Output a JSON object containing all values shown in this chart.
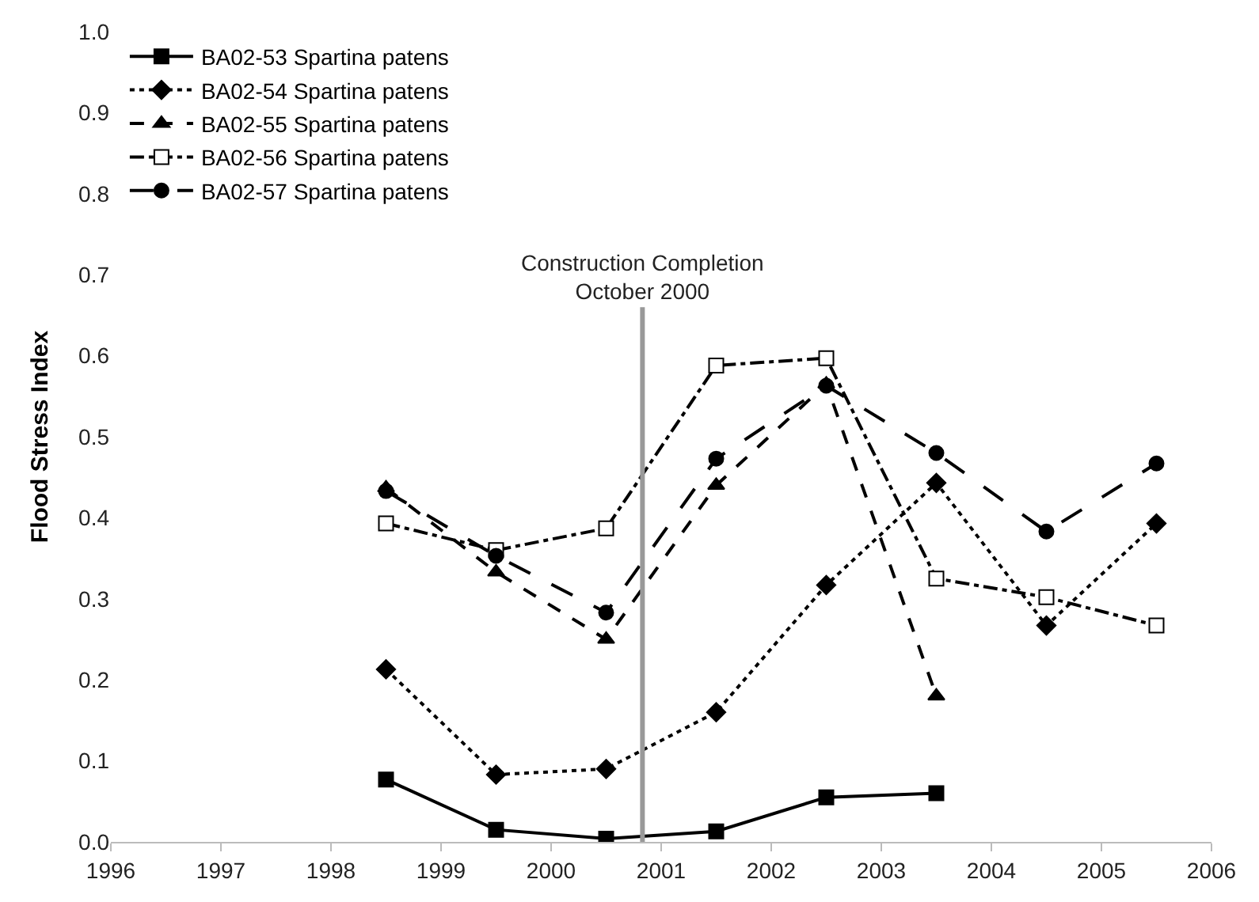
{
  "chart_data": {
    "type": "line",
    "ylabel": "Flood Stress Index",
    "xlim": [
      1996,
      2006
    ],
    "xticks": [
      1996,
      1997,
      1998,
      1999,
      2000,
      2001,
      2002,
      2003,
      2004,
      2005,
      2006
    ],
    "ylim": [
      0,
      1
    ],
    "yticks": [
      {
        "value": 0,
        "label": "0.0"
      },
      {
        "value": 0.1,
        "label": "0.1"
      },
      {
        "value": 0.2,
        "label": "0.2"
      },
      {
        "value": 0.3,
        "label": "0.3"
      },
      {
        "value": 0.4,
        "label": "0.4"
      },
      {
        "value": 0.5,
        "label": "0.5"
      },
      {
        "value": 0.6,
        "label": "0.6"
      },
      {
        "value": 0.7,
        "label": "0.7"
      },
      {
        "value": 0.8,
        "label": "0.8"
      },
      {
        "value": 0.9,
        "label": "0.9"
      },
      {
        "value": 1,
        "label": "1.0"
      }
    ],
    "legend": "top left",
    "ref_lines": [
      {
        "axis": "x",
        "value": 2000.83,
        "label": "Construction Completion\nOctober 2000",
        "color": "#999999",
        "line_style": "solid"
      }
    ],
    "series": [
      {
        "name": "BA02-53 Spartina patens",
        "color": "#000000",
        "marker": "square",
        "line_style": "solid",
        "x": [
          1998.5,
          1999.5,
          2000.5,
          2001.5,
          2002.5,
          2003.5
        ],
        "values": [
          0.077,
          0.015,
          0.004,
          0.013,
          0.055,
          0.06
        ]
      },
      {
        "name": "BA02-54 Spartina patens",
        "color": "#000000",
        "marker": "diamond",
        "line_style": "dotted",
        "x": [
          1998.5,
          1999.5,
          2000.5,
          2001.5,
          2002.5,
          2003.5,
          2004.5,
          2005.5
        ],
        "values": [
          0.213,
          0.083,
          0.09,
          0.16,
          0.317,
          0.443,
          0.267,
          0.393
        ]
      },
      {
        "name": "BA02-55 Spartina patens",
        "color": "#000000",
        "marker": "triangle",
        "line_style": "dashed",
        "x": [
          1998.5,
          1999.5,
          2000.5,
          2001.5,
          2002.5,
          2003.5
        ],
        "values": [
          0.437,
          0.333,
          0.25,
          0.44,
          0.565,
          0.18
        ]
      },
      {
        "name": "BA02-56 Spartina patens",
        "color": "#000000",
        "marker": "square-open",
        "line_style": "dashdot",
        "x": [
          1998.5,
          1999.5,
          2000.5,
          2001.5,
          2002.5,
          2003.5,
          2004.5,
          2005.5
        ],
        "values": [
          0.393,
          0.36,
          0.387,
          0.588,
          0.597,
          0.325,
          0.302,
          0.267
        ]
      },
      {
        "name": "BA02-57 Spartina patens",
        "color": "#000000",
        "marker": "circle",
        "line_style": "longdash",
        "x": [
          1998.5,
          1999.5,
          2000.5,
          2001.5,
          2002.5,
          2003.5,
          2004.5,
          2005.5
        ],
        "values": [
          0.433,
          0.353,
          0.283,
          0.473,
          0.563,
          0.48,
          0.383,
          0.467
        ]
      }
    ]
  }
}
